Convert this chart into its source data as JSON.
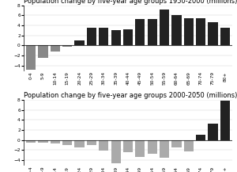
{
  "title1": "Population change by five-year age groups 1950-2000 (millions)",
  "title2": "Population change by five-year age groups 2000-2050 (millions)",
  "categories": [
    "0-4",
    "5-9",
    "10-14",
    "15-19",
    "20-24",
    "25-29",
    "30-34",
    "35-39",
    "40-44",
    "45-49",
    "50-54",
    "55-59",
    "60-64",
    "65-69",
    "70-74",
    "75-79",
    "80+"
  ],
  "values1": [
    -4.8,
    -2.5,
    -1.2,
    -0.3,
    1.0,
    3.5,
    3.5,
    3.0,
    3.2,
    5.2,
    5.3,
    7.2,
    6.1,
    5.4,
    5.4,
    4.6,
    3.5
  ],
  "values2": [
    -0.5,
    -0.5,
    -0.7,
    -1.0,
    -1.5,
    -1.0,
    -2.1,
    -4.6,
    -2.5,
    -3.3,
    -2.8,
    -3.5,
    -1.5,
    -2.2,
    1.1,
    3.2,
    7.9
  ],
  "colors1_neg": "#888888",
  "colors1_pos": "#222222",
  "colors2_neg": "#aaaaaa",
  "colors2_pos": "#222222",
  "ylim": [
    -5,
    8
  ],
  "yticks": [
    -4,
    -2,
    0,
    2,
    4,
    6,
    8
  ],
  "title_fontsize": 6.0,
  "tick_fontsize": 4.2
}
